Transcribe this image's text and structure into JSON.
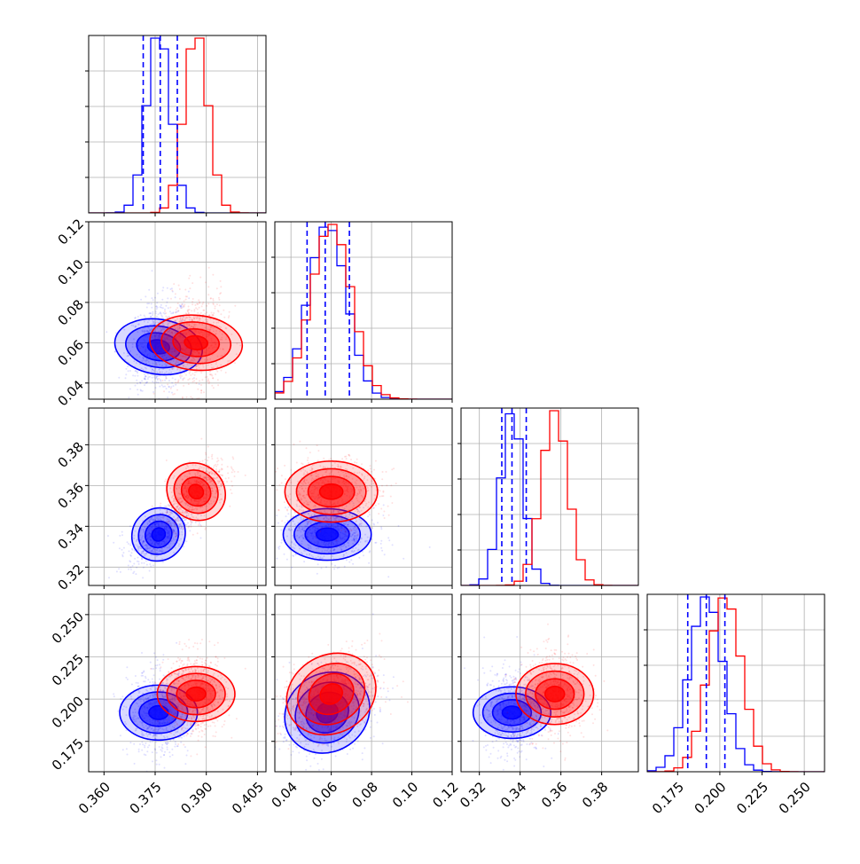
{
  "chart_data": {
    "type": "corner",
    "title": "",
    "parameters": [
      {
        "range": [
          0.3555,
          0.4075
        ],
        "ticks": [
          "0.360",
          "0.375",
          "0.390",
          "0.405"
        ],
        "tick_values": [
          0.36,
          0.375,
          0.39,
          0.405
        ]
      },
      {
        "range": [
          0.032,
          0.12
        ],
        "ticks": [
          "0.04",
          "0.06",
          "0.08",
          "0.10",
          "0.12"
        ],
        "tick_values": [
          0.04,
          0.06,
          0.08,
          0.1,
          0.12
        ]
      },
      {
        "range": [
          0.311,
          0.398
        ],
        "ticks": [
          "0.32",
          "0.34",
          "0.36",
          "0.38"
        ],
        "tick_values": [
          0.32,
          0.34,
          0.36,
          0.38
        ]
      },
      {
        "range": [
          0.157,
          0.262
        ],
        "ticks": [
          "0.175",
          "0.200",
          "0.225",
          "0.250"
        ],
        "tick_values": [
          0.175,
          0.2,
          0.225,
          0.25
        ]
      }
    ],
    "series": [
      {
        "color": "#0000ff",
        "means": [
          0.376,
          0.058,
          0.336,
          0.192
        ],
        "sigmas": [
          0.0035,
          0.0095,
          0.0055,
          0.01
        ],
        "correlations": {
          "0-1": 0.15,
          "0-2": 0.55,
          "0-3": 0.0,
          "1-2": 0.0,
          "1-3": 0.3,
          "2-3": 0.0
        }
      },
      {
        "color": "#ff0000",
        "means": [
          0.387,
          0.06,
          0.357,
          0.203
        ],
        "sigmas": [
          0.0035,
          0.01,
          0.0065,
          0.01
        ],
        "correlations": {
          "0-1": 0.1,
          "0-2": 0.55,
          "0-3": 0.0,
          "1-2": 0.0,
          "1-3": 0.3,
          "2-3": 0.0
        }
      }
    ],
    "quantile_lines": {
      "color": "#0000ff",
      "values": [
        [
          0.3715,
          0.3765,
          0.3815
        ],
        [
          0.048,
          0.057,
          0.069
        ],
        [
          0.331,
          0.336,
          0.343
        ],
        [
          0.181,
          0.192,
          0.203
        ]
      ]
    },
    "grid": true,
    "legend": "none"
  }
}
